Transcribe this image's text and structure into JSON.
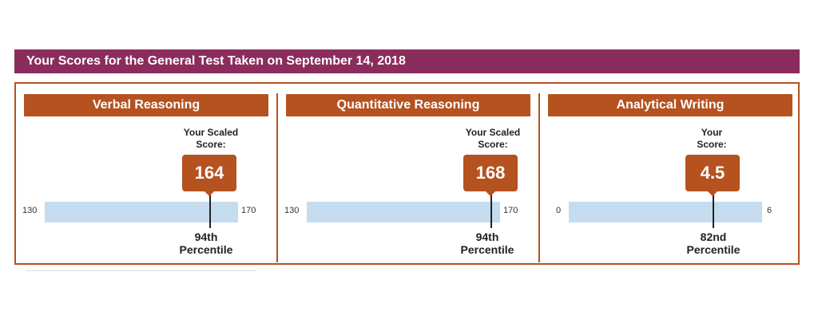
{
  "header": {
    "title": "Your Scores for the General Test Taken on September 14, 2018"
  },
  "colors": {
    "header": "#8b2d5c",
    "accent": "#b5521f",
    "scale": "#c5dcef"
  },
  "sections": [
    {
      "title": "Verbal Reasoning",
      "caption_line1": "Your Scaled",
      "caption_line2": "Score:",
      "score": "164",
      "scale_min": "130",
      "scale_max": "170",
      "percentile_value": "94th",
      "percentile_label": "Percentile"
    },
    {
      "title": "Quantitative Reasoning",
      "caption_line1": "Your Scaled",
      "caption_line2": "Score:",
      "score": "168",
      "scale_min": "130",
      "scale_max": "170",
      "percentile_value": "94th",
      "percentile_label": "Percentile"
    },
    {
      "title": "Analytical Writing",
      "caption_line1": "Your",
      "caption_line2": "Score:",
      "score": "4.5",
      "scale_min": "0",
      "scale_max": "6",
      "percentile_value": "82nd",
      "percentile_label": "Percentile"
    }
  ]
}
